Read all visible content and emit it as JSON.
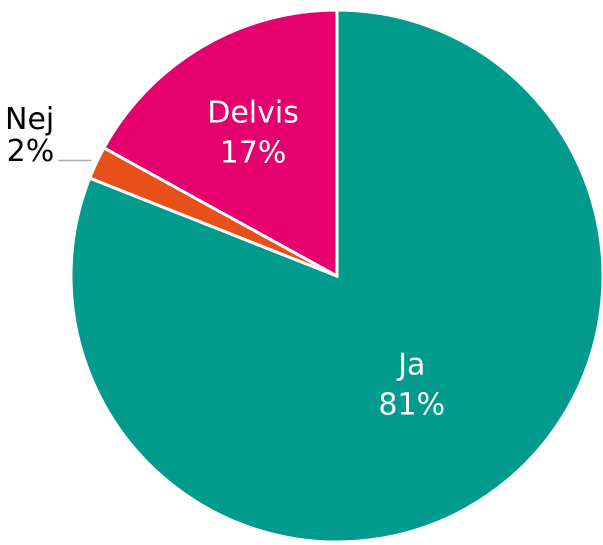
{
  "chart_data": {
    "type": "pie",
    "categories": [
      "Ja",
      "Nej",
      "Delvis"
    ],
    "values": [
      81,
      2,
      17
    ],
    "value_labels": [
      "81%",
      "2%",
      "17%"
    ],
    "colors": [
      "#009b8d",
      "#e8501a",
      "#e5006d"
    ]
  }
}
